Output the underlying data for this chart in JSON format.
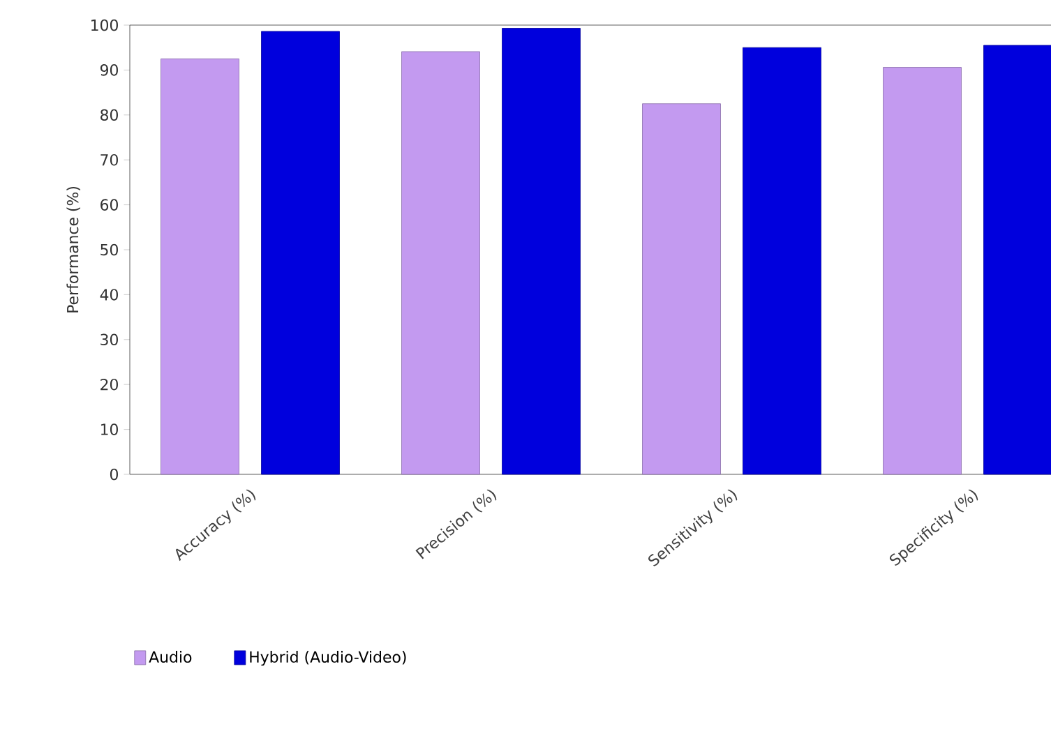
{
  "chart_data": {
    "type": "bar",
    "ylabel": "Performance (%)",
    "categories": [
      "Accuracy (%)",
      "Precision (%)",
      "Sensitivity (%)",
      "Specificity (%)"
    ],
    "series": [
      {
        "name": "Audio",
        "color": "#c39af0",
        "values": [
          92.5,
          94.1,
          82.5,
          90.6
        ]
      },
      {
        "name": "Hybrid (Audio-Video)",
        "color": "#0000dd",
        "values": [
          98.6,
          99.3,
          95,
          95.5
        ]
      }
    ],
    "ylim": [
      0,
      100
    ],
    "yticks": [
      0,
      10,
      20,
      30,
      40,
      50,
      60,
      70,
      80,
      90,
      100
    ],
    "legend": "bottom",
    "grid": false
  }
}
